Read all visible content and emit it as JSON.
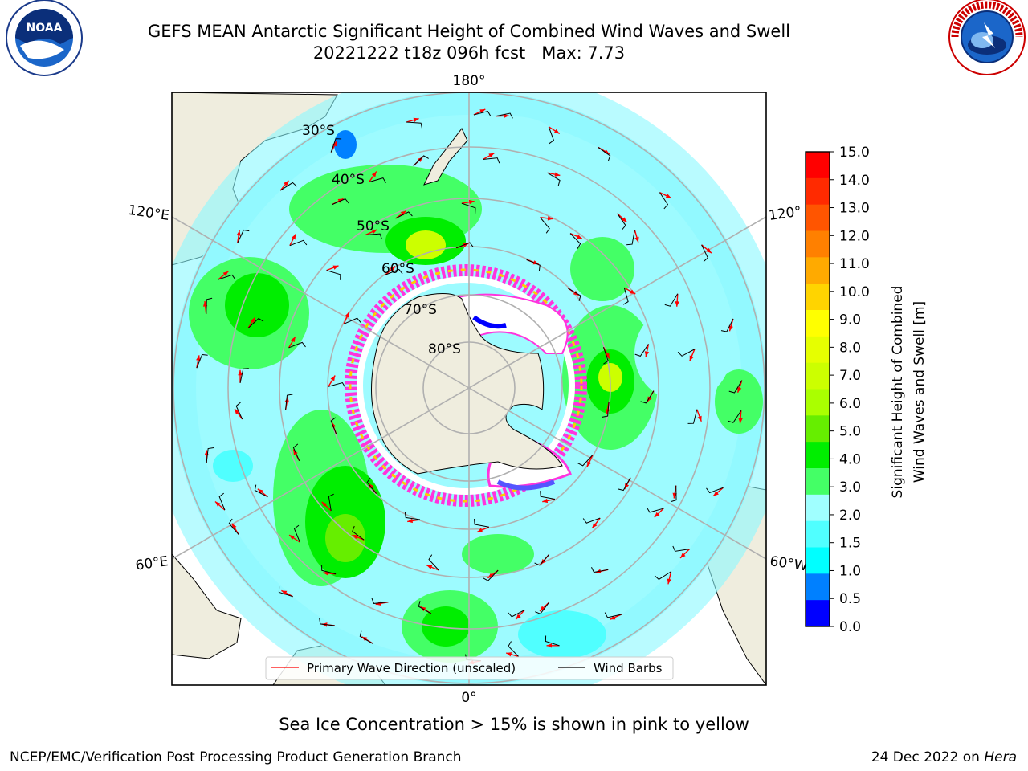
{
  "title": {
    "line1": "GEFS MEAN Antarctic Significant Height of Combined Wind Waves and Swell",
    "line2": "20221222 t18z 096h fcst   Max: 7.73"
  },
  "map": {
    "projection": "south-polar-stereographic",
    "meridian_labels": {
      "top": "180°",
      "bottom": "0°",
      "left_upper": "120°E",
      "left_lower": "60°E",
      "right_upper": "120°",
      "right_lower": "60°W"
    },
    "latitude_labels": [
      "30°S",
      "40°S",
      "50°S",
      "60°S",
      "70°S",
      "80°S"
    ],
    "land_color": "#efedde",
    "ocean_color": "#9dfbff",
    "sea_ice_colors": [
      "#ff33dd",
      "#ffffff",
      "#ffcc00"
    ]
  },
  "legend": {
    "wave_label": "Primary Wave Direction (unscaled)",
    "barb_label": "Wind Barbs",
    "wave_color": "#ff0000",
    "barb_color": "#000000"
  },
  "colorbar": {
    "label_line1": "Significant Height of Combined",
    "label_line2": "Wind Waves and Swell [m]",
    "ticks": [
      "15.0",
      "14.0",
      "13.0",
      "12.0",
      "11.0",
      "10.0",
      "9.0",
      "8.0",
      "7.0",
      "6.0",
      "5.0",
      "4.0",
      "3.0",
      "2.0",
      "1.5",
      "1.0",
      "0.5",
      "0.0"
    ],
    "colors_top_down": [
      "#ff0000",
      "#ff2a00",
      "#ff5500",
      "#ff8000",
      "#ffaa00",
      "#ffd400",
      "#ffff00",
      "#e6ff00",
      "#ccff00",
      "#aaff00",
      "#66ee00",
      "#00ee00",
      "#44ff66",
      "#a0ffff",
      "#50ffff",
      "#00ffff",
      "#0080ff",
      "#0000ff"
    ]
  },
  "note": "Sea Ice Concentration > 15% is shown in pink to yellow",
  "footer": {
    "left": "NCEP/EMC/Verification Post Processing Product Generation Branch",
    "right_date": "24 Dec 2022 on ",
    "right_host": "Hera"
  },
  "logos": {
    "noaa_text": "NOAA",
    "noaa_ring": "NATIONAL OCEANIC AND ATMOSPHERIC ADMINISTRATION · U.S. DEPARTMENT OF COMMERCE",
    "nws_ring": "NATIONAL WEATHER SERVICE"
  }
}
